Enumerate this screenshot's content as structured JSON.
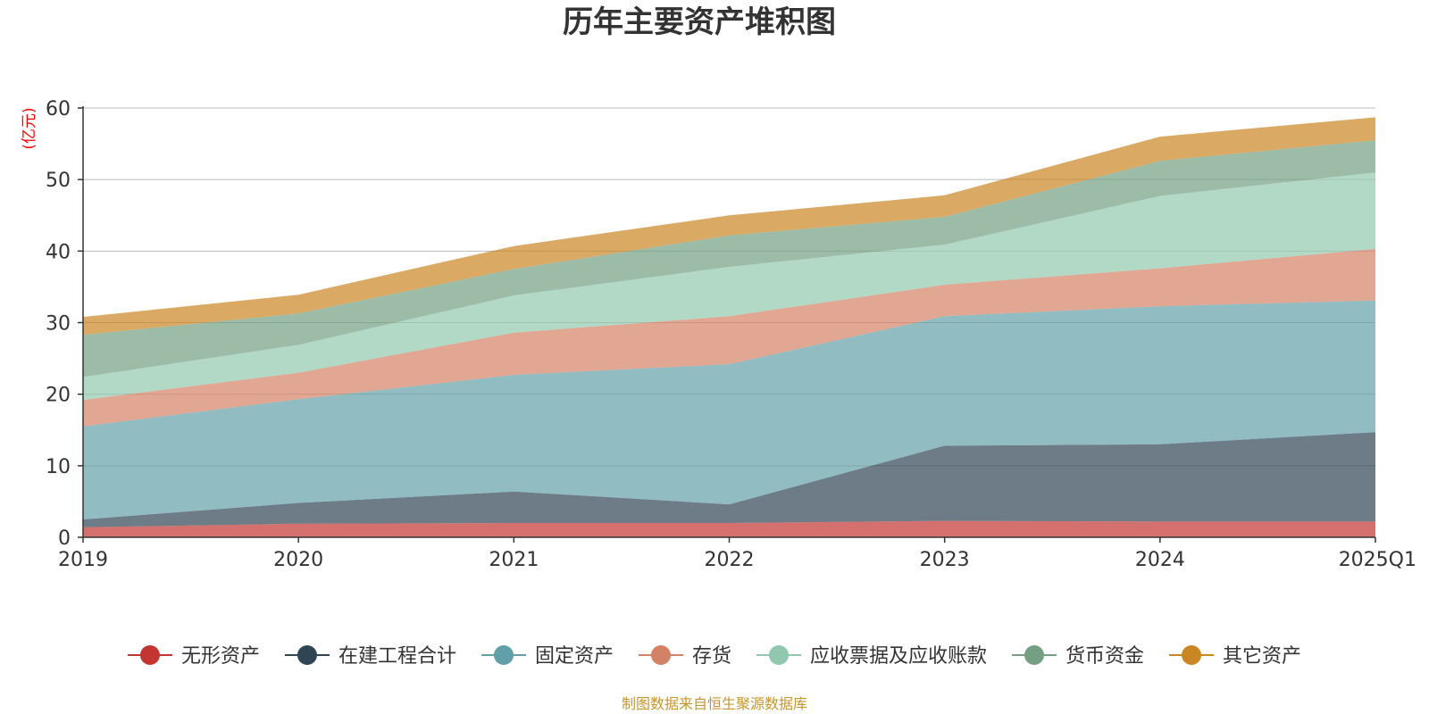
{
  "chart_data": {
    "type": "area",
    "stacked": true,
    "title": "历年主要资产堆积图",
    "ylabel": "(亿元)",
    "xlabel": "",
    "ylim": [
      0,
      60
    ],
    "yticks": [
      0,
      10,
      20,
      30,
      40,
      50,
      60
    ],
    "categories": [
      "2019",
      "2020",
      "2021",
      "2022",
      "2023",
      "2024",
      "2025Q1"
    ],
    "series": [
      {
        "name": "无形资产",
        "color": "#c23531",
        "values": [
          1.4,
          1.9,
          2.0,
          2.0,
          2.3,
          2.2,
          2.2
        ]
      },
      {
        "name": "在建工程合计",
        "color": "#2f4554",
        "values": [
          1.1,
          2.9,
          4.4,
          2.6,
          10.5,
          10.8,
          12.5
        ]
      },
      {
        "name": "固定资产",
        "color": "#61a0a8",
        "values": [
          13.0,
          14.5,
          16.3,
          19.6,
          18.1,
          19.3,
          18.4
        ]
      },
      {
        "name": "存货",
        "color": "#d48265",
        "values": [
          3.7,
          3.7,
          5.9,
          6.7,
          4.4,
          5.3,
          7.2
        ]
      },
      {
        "name": "应收票据及应收账款",
        "color": "#91c7ae",
        "values": [
          3.2,
          3.9,
          5.2,
          6.9,
          5.6,
          10.1,
          10.7
        ]
      },
      {
        "name": "货币资金",
        "color": "#749f83",
        "values": [
          5.9,
          4.4,
          3.7,
          4.4,
          3.9,
          4.9,
          4.5
        ]
      },
      {
        "name": "其它资产",
        "color": "#ca8622",
        "values": [
          2.5,
          2.6,
          3.2,
          2.8,
          3.0,
          3.4,
          3.2
        ]
      }
    ]
  },
  "source_note": "制图数据来自恒生聚源数据库",
  "colors": {
    "axis": "#333333",
    "grid": "#bbbbbb",
    "unit_label": "#ff0000",
    "source_note": "#c8952e"
  }
}
